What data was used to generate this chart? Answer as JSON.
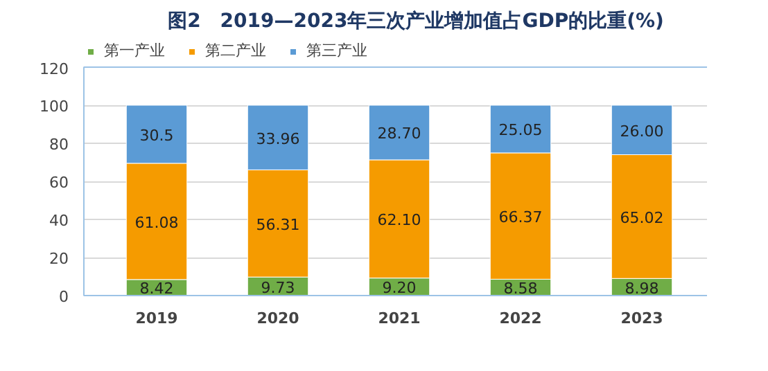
{
  "chart_data": {
    "type": "bar",
    "stacked": true,
    "title": "图2　2019—2023年三次产业增加值占GDP的比重(%)",
    "categories": [
      "2019",
      "2020",
      "2021",
      "2022",
      "2023"
    ],
    "series": [
      {
        "name": "第一产业",
        "color": "#70ad47",
        "values": [
          8.42,
          9.73,
          9.2,
          8.58,
          8.98
        ],
        "value_labels": [
          "8.42",
          "9.73",
          "9.20",
          "8.58",
          "8.98"
        ]
      },
      {
        "name": "第二产业",
        "color": "#f59b00",
        "values": [
          61.08,
          56.31,
          62.1,
          66.37,
          65.02
        ],
        "value_labels": [
          "61.08",
          "56.31",
          "62.10",
          "66.37",
          "65.02"
        ]
      },
      {
        "name": "第三产业",
        "color": "#5b9bd5",
        "values": [
          30.5,
          33.96,
          28.7,
          25.05,
          26.0
        ],
        "value_labels": [
          "30.5",
          "33.96",
          "28.70",
          "25.05",
          "26.00"
        ]
      }
    ],
    "ylim": [
      0,
      120
    ],
    "yticks": [
      0,
      20,
      40,
      60,
      80,
      100,
      120
    ],
    "grid": "y",
    "legend": "top left"
  }
}
